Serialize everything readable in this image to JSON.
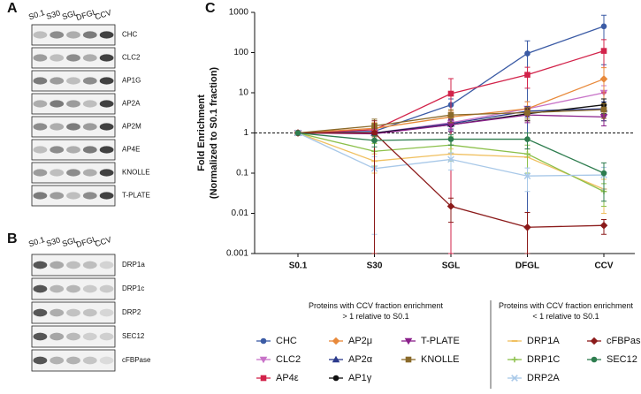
{
  "blots": {
    "A": {
      "label": "A",
      "lanes": [
        "S0.1",
        "S30",
        "SGL",
        "DFGL",
        "CCV"
      ],
      "proteins": [
        "CHC",
        "CLC2",
        "AP1G",
        "AP2A",
        "AP2M",
        "AP4E",
        "KNOLLE",
        "T-PLATE"
      ]
    },
    "B": {
      "label": "B",
      "lanes": [
        "S0.1",
        "S30",
        "SGL",
        "DFGL",
        "CCV"
      ],
      "proteins": [
        "DRP1a",
        "DRP1c",
        "DRP2",
        "SEC12",
        "cFBPase"
      ]
    }
  },
  "chart_data": {
    "type": "line",
    "label": "C",
    "ylabel": [
      "Fold Enrichment",
      "(Normalized to S0.1 fraction)"
    ],
    "yscale": "log",
    "categories": [
      "S0.1",
      "S30",
      "SGL",
      "DFGL",
      "CCV"
    ],
    "ylim": [
      0.001,
      1000
    ],
    "yticks": [
      0.001,
      0.01,
      0.1,
      1,
      10,
      100,
      1000
    ],
    "reference_line": 1,
    "legend_titles": [
      "Proteins with CCV fraction enrichment\n> 1 relative to S0.1",
      "Proteins with CCV fraction enrichment\n< 1 relative to S0.1"
    ],
    "series": [
      {
        "name": "CHC",
        "color": "#3b5ba5",
        "marker": "circle",
        "values": [
          1,
          1.1,
          5,
          95,
          450
        ],
        "errors": [
          0,
          0.3,
          2,
          100,
          400
        ]
      },
      {
        "name": "CLC2",
        "color": "#c873c8",
        "marker": "triangle-down",
        "values": [
          1,
          1.0,
          1.8,
          4,
          10
        ],
        "errors": [
          0,
          0.3,
          0.5,
          2,
          5
        ]
      },
      {
        "name": "AP4ε",
        "color": "#d2234a",
        "marker": "square",
        "values": [
          1,
          1.2,
          9.5,
          28,
          110
        ],
        "errors": [
          0,
          0.5,
          13,
          15,
          100
        ]
      },
      {
        "name": "AP2μ",
        "color": "#e8893a",
        "marker": "diamond",
        "values": [
          1,
          1.3,
          2.5,
          4,
          22
        ],
        "errors": [
          0,
          0.5,
          1,
          2,
          20
        ]
      },
      {
        "name": "AP2α",
        "color": "#2b3a8c",
        "marker": "triangle",
        "values": [
          1,
          1.0,
          1.7,
          3.5,
          4
        ],
        "errors": [
          0,
          0.3,
          0.5,
          1,
          2
        ]
      },
      {
        "name": "AP1γ",
        "color": "#111111",
        "marker": "circle",
        "values": [
          1,
          1.0,
          1.6,
          3,
          5
        ],
        "errors": [
          0,
          0.3,
          0.5,
          1,
          2
        ]
      },
      {
        "name": "T-PLATE",
        "color": "#8a1f8a",
        "marker": "triangle-down",
        "values": [
          1,
          0.95,
          1.6,
          2.8,
          2.5
        ],
        "errors": [
          0,
          0.3,
          0.5,
          1,
          1
        ]
      },
      {
        "name": "KNOLLE",
        "color": "#8a6a2a",
        "marker": "square",
        "values": [
          1,
          1.5,
          2.8,
          3.2,
          3.8
        ],
        "errors": [
          0,
          0.7,
          1,
          1,
          1.5
        ]
      },
      {
        "name": "DRP1A",
        "color": "#f0c060",
        "marker": "dash",
        "values": [
          1,
          0.2,
          0.3,
          0.25,
          0.04
        ],
        "errors": [
          0,
          0.1,
          0.1,
          0.15,
          0.03
        ]
      },
      {
        "name": "DRP1C",
        "color": "#8cc04a",
        "marker": "plus",
        "values": [
          1,
          0.35,
          0.5,
          0.3,
          0.035
        ],
        "errors": [
          0,
          0.2,
          0.3,
          0.2,
          0.02
        ]
      },
      {
        "name": "DRP2A",
        "color": "#a8c8e8",
        "marker": "x",
        "values": [
          1,
          0.13,
          0.22,
          0.085,
          0.09
        ],
        "errors": [
          0,
          0.127,
          0.1,
          0.05,
          0.05
        ]
      },
      {
        "name": "cFBPase",
        "color": "#8b1a1a",
        "marker": "diamond",
        "values": [
          1,
          1.0,
          0.015,
          0.0045,
          0.005
        ],
        "errors": [
          0,
          1,
          0.009,
          0.006,
          0.002
        ]
      },
      {
        "name": "SEC12",
        "color": "#2e7d4f",
        "marker": "circle",
        "values": [
          1,
          0.65,
          0.7,
          0.7,
          0.1
        ],
        "errors": [
          0,
          0.2,
          0.2,
          0.3,
          0.08
        ]
      }
    ]
  }
}
